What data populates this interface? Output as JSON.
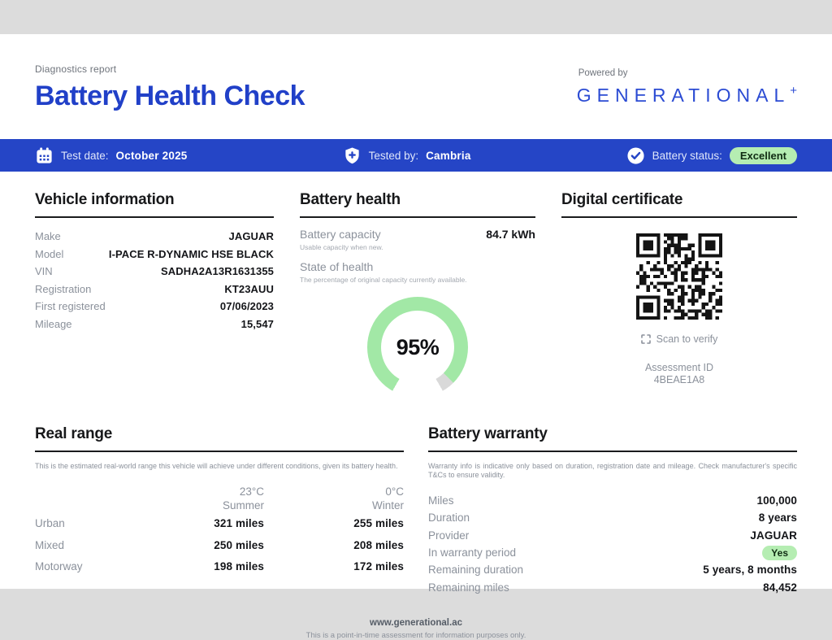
{
  "colors": {
    "accent_blue": "#2545c6",
    "title_blue": "#2140c8",
    "gauge_green": "#a2e8a6",
    "gauge_track": "#d9d9d9",
    "pill_green": "#b5edb2"
  },
  "header": {
    "kicker": "Diagnostics report",
    "title": "Battery Health Check",
    "powered_by": "Powered by",
    "brand": "GENERATIONAL",
    "brand_plus": "+"
  },
  "info_bar": {
    "test_date_label": "Test date:",
    "test_date": "October 2025",
    "tested_by_label": "Tested by:",
    "tested_by": "Cambria",
    "status_label": "Battery status:",
    "status": "Excellent"
  },
  "vehicle": {
    "heading": "Vehicle information",
    "rows": [
      {
        "label": "Make",
        "value": "JAGUAR"
      },
      {
        "label": "Model",
        "value": "I-PACE R-DYNAMIC HSE BLACK"
      },
      {
        "label": "VIN",
        "value": "SADHA2A13R1631355"
      },
      {
        "label": "Registration",
        "value": "KT23AUU"
      },
      {
        "label": "First registered",
        "value": "07/06/2023"
      },
      {
        "label": "Mileage",
        "value": "15,547"
      }
    ]
  },
  "battery_health": {
    "heading": "Battery health",
    "capacity_label": "Battery capacity",
    "capacity_value": "84.7 kWh",
    "capacity_sub": "Usable capacity when new.",
    "soh_label": "State of health",
    "soh_sub": "The percentage of original capacity currently available.",
    "soh_value": 95,
    "soh_display": "95%"
  },
  "certificate": {
    "heading": "Digital certificate",
    "scan_label": "Scan to verify",
    "assessment_id_label": "Assessment ID",
    "assessment_id": "4BEAE1A8"
  },
  "real_range": {
    "heading": "Real range",
    "description": "This is the estimated real-world range this vehicle will achieve under different conditions, given its battery health.",
    "columns": [
      {
        "temp": "23°C",
        "season": "Summer"
      },
      {
        "temp": "0°C",
        "season": "Winter"
      }
    ],
    "rows": [
      {
        "label": "Urban",
        "summer": "321 miles",
        "winter": "255 miles"
      },
      {
        "label": "Mixed",
        "summer": "250 miles",
        "winter": "208 miles"
      },
      {
        "label": "Motorway",
        "summer": "198 miles",
        "winter": "172 miles"
      }
    ]
  },
  "warranty": {
    "heading": "Battery warranty",
    "description": "Warranty info is indicative only based on duration, registration date and mileage. Check manufacturer's specific T&Cs to ensure validity.",
    "rows": [
      {
        "label": "Miles",
        "value": "100,000"
      },
      {
        "label": "Duration",
        "value": "8 years"
      },
      {
        "label": "Provider",
        "value": "JAGUAR"
      },
      {
        "label": "In warranty period",
        "value": "Yes"
      },
      {
        "label": "Remaining duration",
        "value": "5 years, 8 months"
      },
      {
        "label": "Remaining miles",
        "value": "84,452"
      }
    ]
  },
  "footer": {
    "url": "www.generational.ac",
    "disclaimer": "This is a point-in-time assessment for information purposes only."
  }
}
